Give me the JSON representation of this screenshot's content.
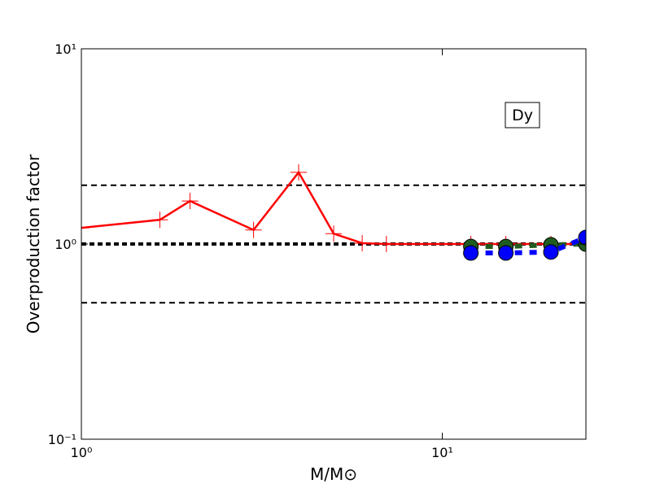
{
  "chart_data": {
    "type": "line",
    "xlabel": "M/M⊙",
    "ylabel": "Overproduction factor",
    "annotation": "Dy",
    "xscale": "log",
    "yscale": "log",
    "xlim": [
      1,
      25
    ],
    "ylim": [
      0.1,
      10
    ],
    "xticks": [
      {
        "value": 1,
        "label": "10⁰"
      },
      {
        "value": 10,
        "label": "10¹"
      }
    ],
    "yticks": [
      {
        "value": 0.1,
        "label": "10⁻¹"
      },
      {
        "value": 1,
        "label": "10⁰"
      },
      {
        "value": 10,
        "label": "10¹"
      }
    ],
    "reference_lines": [
      2,
      1,
      0.5
    ],
    "series": [
      {
        "color": "#ff0000",
        "marker": "plus",
        "dash": "solid",
        "x": [
          1,
          1.65,
          2,
          3,
          4,
          5,
          6,
          7,
          12,
          15,
          20,
          25
        ],
        "values": [
          1.21,
          1.33,
          1.66,
          1.18,
          2.33,
          1.13,
          1.01,
          1.0,
          1.0,
          1.0,
          1.0,
          1.0
        ]
      },
      {
        "color": "#1f5c1f",
        "marker": "circle",
        "dash": "dashed",
        "x": [
          12,
          15,
          20,
          25
        ],
        "values": [
          0.97,
          0.97,
          0.99,
          1.0
        ]
      },
      {
        "color": "#0000ff",
        "marker": "circle",
        "dash": "dashed",
        "x": [
          12,
          15,
          20,
          25
        ],
        "values": [
          0.9,
          0.9,
          0.91,
          1.08
        ]
      }
    ]
  }
}
